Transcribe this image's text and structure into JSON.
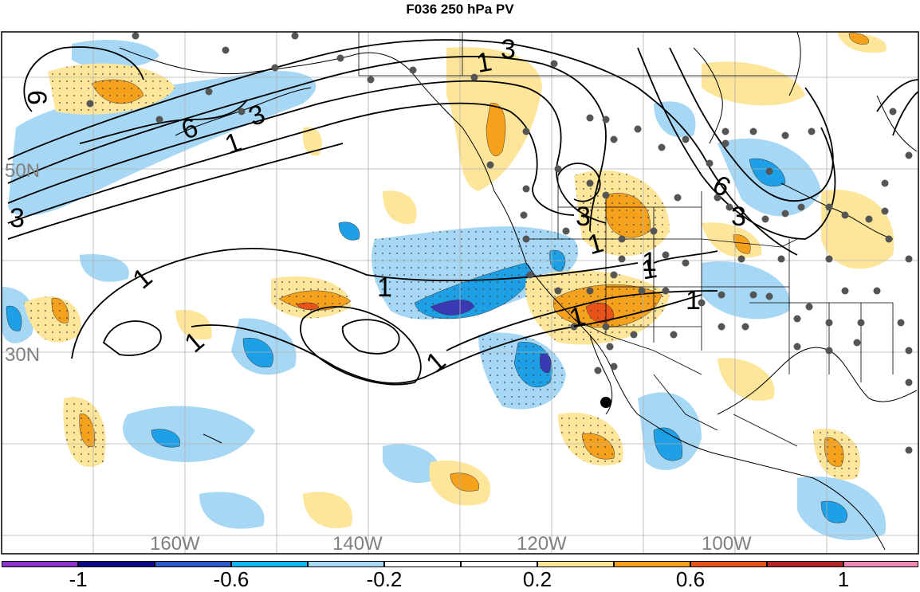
{
  "title": "F036 250 hPa PV",
  "map": {
    "lat_labels": [
      "50N",
      "30N"
    ],
    "lon_labels": [
      "160W",
      "140W",
      "120W",
      "100W"
    ],
    "contour_labels": [
      "6",
      "3",
      "6",
      "1",
      "3",
      "1",
      "3",
      "1",
      "1",
      "1",
      "3",
      "6",
      "3",
      "1",
      "1",
      "1",
      "1",
      "1",
      "1"
    ],
    "colors": {
      "neg_strong": "#3a3ab8",
      "neg_mid": "#1ea0e6",
      "neg_weak": "#a6d8f5",
      "pos_weak": "#fde59a",
      "pos_mid": "#f5a11c",
      "pos_strong": "#e9531a",
      "land": "#ffffff",
      "station": "#555555"
    }
  },
  "colorbar": {
    "labels": [
      "-1",
      "-0.6",
      "-0.2",
      "0.2",
      "0.6",
      "1"
    ],
    "colors": [
      "#8a35c9",
      "#0a0a8a",
      "#2f59c9",
      "#11b4ef",
      "#a6d8f5",
      "#ffffff",
      "#ffffff",
      "#fde59a",
      "#f5a11c",
      "#e9531a",
      "#b2262a",
      "#f28ab8"
    ]
  }
}
